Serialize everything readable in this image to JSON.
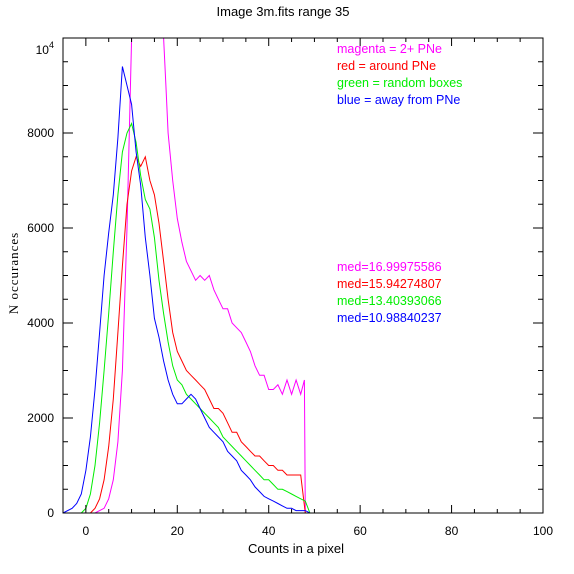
{
  "chart_data": {
    "type": "line",
    "title": "Image 3m.fits   range 35",
    "xlabel": "Counts in a pixel",
    "ylabel": "N  occurances",
    "xlim": [
      -5,
      100
    ],
    "ylim": [
      0,
      10000
    ],
    "x_ticks": [
      0,
      20,
      40,
      60,
      80,
      100
    ],
    "x_tick_labels": [
      "0",
      "20",
      "40",
      "60",
      "80",
      "100"
    ],
    "y_ticks": [
      0,
      2000,
      4000,
      6000,
      8000
    ],
    "y_tick_labels": [
      "0",
      "2000",
      "4000",
      "6000",
      "8000"
    ],
    "y_top_label_base": "10",
    "y_top_label_exp": "4",
    "grid": false,
    "legend_position": "top-right",
    "legend": [
      {
        "text": "magenta = 2+ PNe",
        "color": "#ff00ff"
      },
      {
        "text": "red = around PNe",
        "color": "#ff0000"
      },
      {
        "text": "green = random boxes",
        "color": "#00ee00"
      },
      {
        "text": "blue = away from PNe",
        "color": "#0000ff"
      }
    ],
    "medians": [
      {
        "text": "med=16.99975586",
        "color": "#ff00ff"
      },
      {
        "text": "med=15.94274807",
        "color": "#ff0000"
      },
      {
        "text": "med=13.40393066",
        "color": "#00ee00"
      },
      {
        "text": "med=10.98840237",
        "color": "#0000ff"
      }
    ],
    "series": [
      {
        "color": "#ff00ff",
        "x": [
          -5,
          2,
          4,
          5,
          6,
          7,
          8,
          9,
          10,
          11,
          12,
          13,
          14,
          15,
          16,
          17,
          17.5,
          18,
          19,
          20,
          21,
          22,
          23,
          24,
          25,
          26,
          27,
          28,
          29,
          30,
          31,
          32,
          33,
          34,
          35,
          36,
          37,
          38,
          39,
          40,
          41,
          42,
          43,
          44,
          45,
          46,
          47,
          47.8,
          48,
          49,
          100
        ],
        "y": [
          0,
          0,
          100,
          300,
          700,
          1500,
          3000,
          6000,
          10000,
          10000,
          10000,
          10000,
          10000,
          10000,
          10000,
          10000,
          9000,
          8000,
          7000,
          6200,
          5700,
          5300,
          5100,
          4900,
          5000,
          4900,
          5000,
          4700,
          4500,
          4300,
          4300,
          4000,
          3900,
          3800,
          3600,
          3400,
          3100,
          2900,
          2900,
          2600,
          2600,
          2700,
          2500,
          2800,
          2500,
          2800,
          2500,
          2800,
          0,
          0,
          0
        ]
      },
      {
        "color": "#ff0000",
        "x": [
          -5,
          1,
          2,
          3,
          4,
          5,
          6,
          7,
          8,
          9,
          10,
          11,
          12,
          13,
          14,
          15,
          16,
          17,
          18,
          19,
          20,
          21,
          22,
          23,
          24,
          25,
          26,
          27,
          28,
          29,
          30,
          31,
          32,
          33,
          34,
          35,
          36,
          37,
          38,
          39,
          40,
          41,
          42,
          43,
          44,
          45,
          46,
          47,
          48,
          49,
          100
        ],
        "y": [
          0,
          0,
          100,
          300,
          700,
          1400,
          2400,
          3800,
          5200,
          6500,
          7200,
          7500,
          7300,
          7500,
          7000,
          6700,
          6100,
          5300,
          4500,
          3800,
          3400,
          3200,
          3000,
          2900,
          2800,
          2700,
          2600,
          2400,
          2200,
          2200,
          2100,
          1900,
          1700,
          1700,
          1500,
          1400,
          1300,
          1200,
          1200,
          1100,
          1000,
          1000,
          900,
          900,
          800,
          800,
          800,
          800,
          0,
          0,
          0
        ]
      },
      {
        "color": "#00ee00",
        "x": [
          -5,
          -1,
          0,
          1,
          2,
          3,
          4,
          5,
          6,
          7,
          8,
          9,
          10,
          11,
          12,
          13,
          14,
          15,
          16,
          17,
          18,
          19,
          20,
          21,
          22,
          23,
          24,
          25,
          26,
          27,
          28,
          29,
          30,
          31,
          32,
          33,
          34,
          35,
          36,
          37,
          38,
          39,
          40,
          41,
          42,
          43,
          44,
          45,
          46,
          47,
          48,
          49,
          100
        ],
        "y": [
          0,
          0,
          100,
          400,
          1000,
          1900,
          3000,
          4200,
          5500,
          6700,
          7600,
          8000,
          8200,
          7800,
          7100,
          6600,
          6400,
          5800,
          4900,
          4200,
          3600,
          3100,
          2800,
          2700,
          2500,
          2400,
          2300,
          2200,
          2100,
          2000,
          1900,
          1800,
          1600,
          1500,
          1400,
          1300,
          1200,
          1100,
          1000,
          900,
          800,
          700,
          700,
          600,
          500,
          500,
          450,
          400,
          350,
          300,
          250,
          0,
          0
        ]
      },
      {
        "color": "#0000ff",
        "x": [
          -5,
          -3,
          -2,
          -1,
          0,
          1,
          2,
          3,
          4,
          5,
          6,
          7,
          8,
          9,
          10,
          11,
          12,
          13,
          14,
          15,
          16,
          17,
          18,
          19,
          20,
          21,
          22,
          23,
          24,
          25,
          26,
          27,
          28,
          29,
          30,
          31,
          32,
          33,
          34,
          35,
          36,
          37,
          38,
          39,
          40,
          41,
          42,
          43,
          44,
          45,
          46,
          47,
          48,
          49,
          100
        ],
        "y": [
          0,
          100,
          200,
          400,
          900,
          1600,
          2600,
          3800,
          5000,
          5900,
          6700,
          7900,
          9400,
          9000,
          8600,
          7600,
          6900,
          5800,
          5000,
          4100,
          3700,
          3200,
          2800,
          2500,
          2300,
          2300,
          2400,
          2500,
          2400,
          2200,
          2000,
          1800,
          1700,
          1600,
          1500,
          1300,
          1200,
          1100,
          900,
          800,
          700,
          550,
          450,
          350,
          300,
          250,
          200,
          150,
          100,
          100,
          50,
          50,
          50,
          0,
          0
        ]
      }
    ]
  }
}
